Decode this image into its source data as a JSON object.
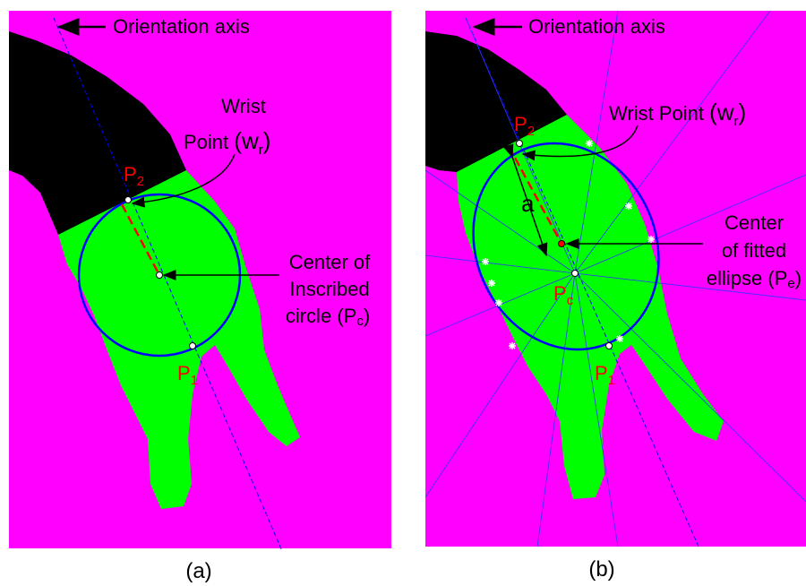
{
  "panels": [
    {
      "caption": "(a)",
      "axis_label": "Orientation axis",
      "wrist_lines": [
        "Wrist",
        "Point"
      ],
      "wrist_symbol": {
        "open": "(",
        "base": "w",
        "sub": "r",
        "close": ")"
      },
      "p2": {
        "base": "P",
        "sub": "2"
      },
      "p1": {
        "base": "P",
        "sub": "1"
      },
      "center_lines": [
        "Center of",
        "Inscribed",
        "circle"
      ],
      "center_symbol": {
        "open": "(",
        "base": "P",
        "sub": "c",
        "close": ")"
      }
    },
    {
      "caption": "(b)",
      "axis_label": "Orientation axis",
      "wrist_lines": [
        "Wrist Point"
      ],
      "wrist_symbol": {
        "open": "(",
        "base": "w",
        "sub": "r",
        "close": ")"
      },
      "p2": {
        "base": "P",
        "sub": "2"
      },
      "p1": {
        "base": "P",
        "sub": "1"
      },
      "a_label": "a",
      "pc": {
        "base": "P",
        "sub": "c"
      },
      "center_lines": [
        "Center",
        "of fitted",
        "ellipse"
      ],
      "center_symbol": {
        "open": "(",
        "base": "P",
        "sub": "e",
        "close": ")"
      }
    }
  ]
}
